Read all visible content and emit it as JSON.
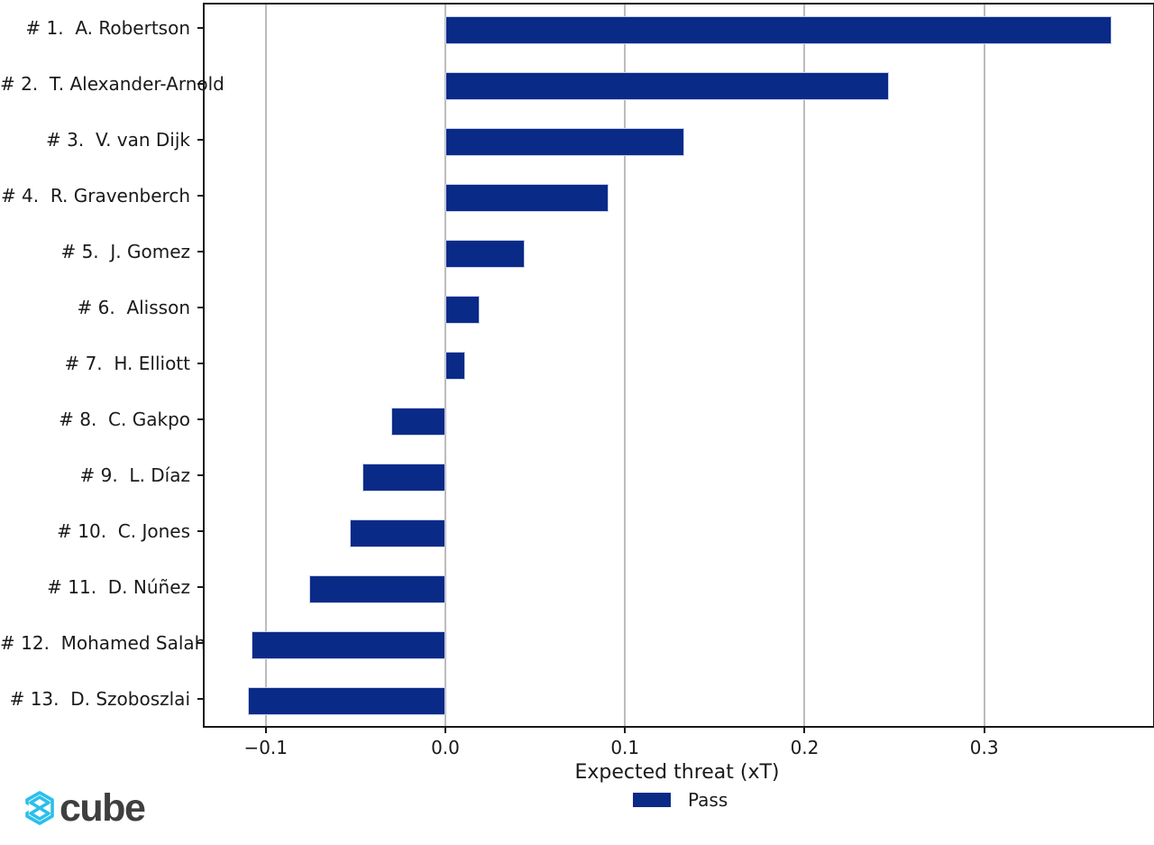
{
  "chart_data": {
    "type": "bar",
    "orientation": "horizontal",
    "title": "",
    "xlabel": "Expected threat (xT)",
    "ylabel": "",
    "categories": [
      "# 1.  A. Robertson",
      "# 2.  T. Alexander-Arnold",
      "# 3.  V. van Dijk",
      "# 4.  R. Gravenberch",
      "# 5.  J. Gomez",
      "# 6.  Alisson",
      "# 7.  H. Elliott",
      "# 8.  C. Gakpo",
      "# 9.  L. Díaz",
      "# 10.  C. Jones",
      "# 11.  D. Núñez",
      "# 12.  Mohamed Salah",
      "# 13.  D. Szoboszlai"
    ],
    "series": [
      {
        "name": "Pass",
        "color": "#0a2a87",
        "values": [
          0.371,
          0.247,
          0.133,
          0.091,
          0.044,
          0.019,
          0.011,
          -0.03,
          -0.046,
          -0.053,
          -0.076,
          -0.108,
          -0.11
        ]
      }
    ],
    "xlim": [
      -0.134,
      0.394
    ],
    "xticks": [
      {
        "value": -0.1,
        "label": "−0.1"
      },
      {
        "value": 0.0,
        "label": "0.0"
      },
      {
        "value": 0.1,
        "label": "0.1"
      },
      {
        "value": 0.2,
        "label": "0.2"
      },
      {
        "value": 0.3,
        "label": "0.3"
      }
    ],
    "grid": "vertical",
    "legend": {
      "position": "bottom-center",
      "entries": [
        {
          "label": "Pass",
          "color": "#0a2a87"
        }
      ]
    }
  },
  "branding": {
    "logo_text": "cube",
    "logo_icon": "cube-wireframe-icon",
    "logo_icon_color": "#2bbfeb",
    "logo_text_color": "#3f3f3f"
  },
  "style_colors": {
    "bar": "#0a2a87",
    "grid": "#bcbcbc",
    "axis": "#1a1a1a",
    "background": "#ffffff"
  }
}
